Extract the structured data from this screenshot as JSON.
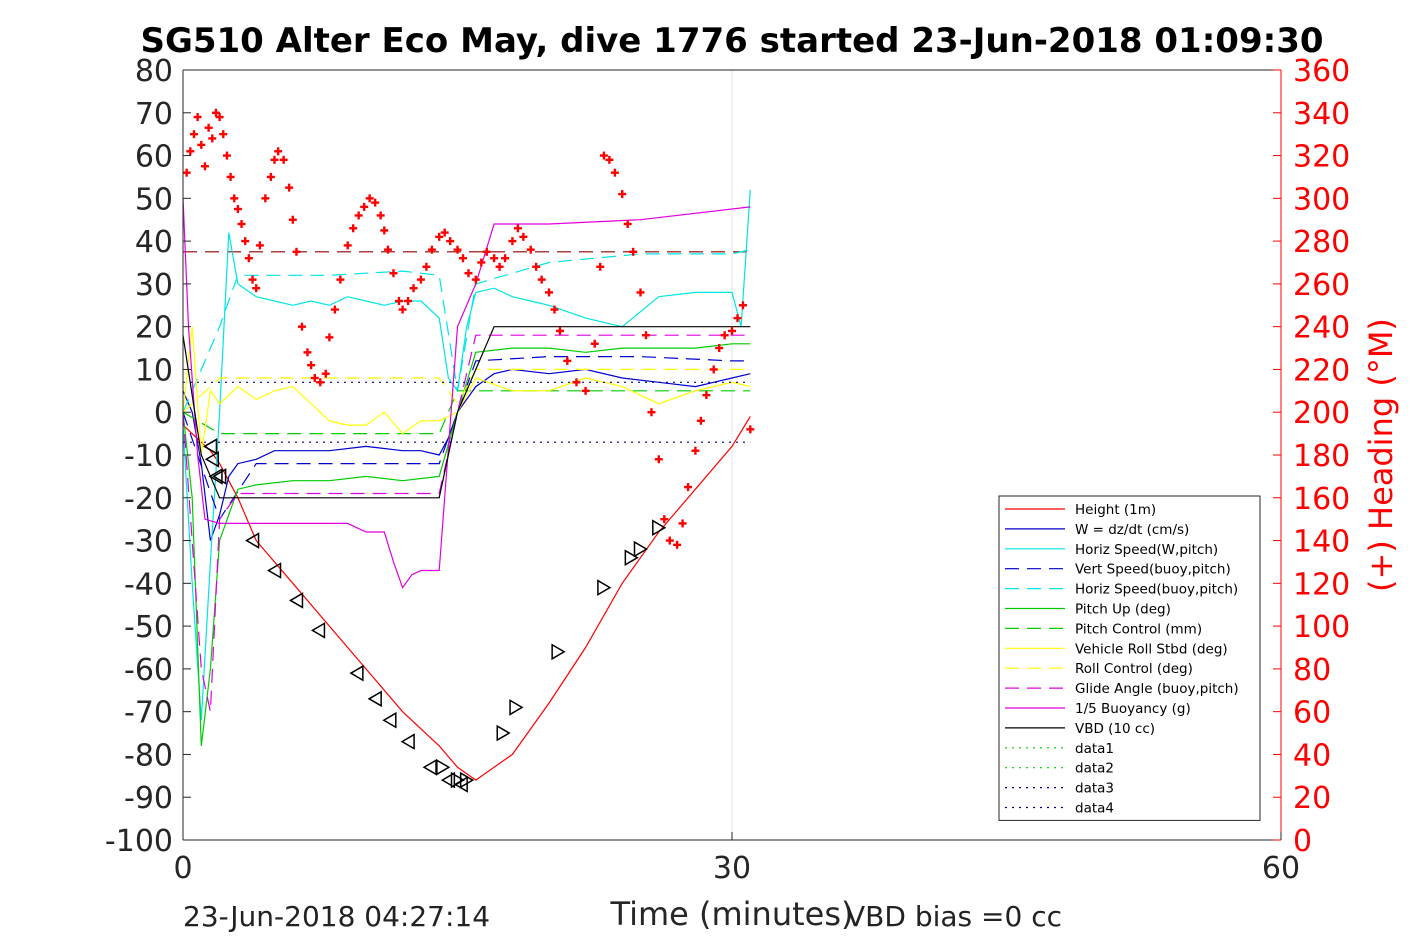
{
  "chart_data": {
    "type": "line",
    "title": "SG510 Alter Eco May, dive 1776 started 23-Jun-2018 01:09:30",
    "xlabel": "Time (minutes)",
    "ylabel_right": "(+) Heading (°M)",
    "xlim": [
      0,
      60
    ],
    "ylim_left": [
      -100,
      80
    ],
    "ylim_right": [
      0,
      360
    ],
    "x_ticks": [
      "0",
      "30",
      "60"
    ],
    "y_ticks_left": [
      "80",
      "70",
      "60",
      "50",
      "40",
      "30",
      "20",
      "10",
      "0",
      "-10",
      "-20",
      "-30",
      "-40",
      "-50",
      "-60",
      "-70",
      "-80",
      "-90",
      "-100"
    ],
    "y_ticks_right": [
      "360",
      "340",
      "320",
      "300",
      "280",
      "260",
      "240",
      "220",
      "200",
      "180",
      "160",
      "140",
      "120",
      "100",
      "80",
      "60",
      "40",
      "20",
      "0"
    ],
    "grid": "x only",
    "legend_position": "bottom-right",
    "footer_left": "23-Jun-2018 04:27:14",
    "footer_right": "VBD bias =0 cc",
    "colors": {
      "axis": "#262626",
      "right_axis": "#ff0000",
      "height": "#ff0000",
      "w": "#0000cc",
      "horiz_speed": "#00e5e5",
      "pitch": "#00cc00",
      "roll": "#ffff00",
      "glide": "#e000e0",
      "vbd": "#000000",
      "heading": "#ff0000"
    },
    "series": [
      {
        "name": "Height (1m)",
        "color": "#ff0000",
        "style": "solid",
        "x": [
          0,
          1,
          1.5,
          2,
          3,
          4,
          6,
          8,
          10,
          12,
          14,
          15,
          16,
          18,
          20,
          22,
          24,
          26,
          28,
          30,
          31
        ],
        "y": [
          -3,
          -7,
          -9,
          -12,
          -20,
          -30,
          -40,
          -50,
          -60,
          -70,
          -78,
          -83,
          -86,
          -80,
          -68,
          -55,
          -40,
          -28,
          -18,
          -8,
          -1
        ]
      },
      {
        "name": "W = dz/dt (cm/s)",
        "color": "#0000cc",
        "style": "solid",
        "x": [
          0,
          0.5,
          1,
          1.5,
          2,
          2.5,
          3,
          4,
          5,
          6,
          8,
          10,
          12,
          13,
          14,
          14.5,
          15,
          16,
          17,
          18,
          20,
          22,
          24,
          26,
          28,
          30,
          31
        ],
        "y": [
          5,
          0,
          -12,
          -30,
          -24,
          -15,
          -12,
          -11,
          -9,
          -9,
          -9,
          -8,
          -9,
          -9,
          -10,
          -6,
          0,
          6,
          9,
          10,
          9,
          10,
          8,
          7,
          6,
          8,
          9
        ]
      },
      {
        "name": "Horiz Speed(W,pitch)",
        "color": "#00e5e5",
        "style": "solid",
        "x": [
          0,
          0.5,
          1,
          1.5,
          2,
          2.5,
          3,
          4,
          5,
          6,
          7,
          8,
          9,
          10,
          11,
          12,
          13,
          14,
          14.5,
          15,
          15.5,
          16,
          17,
          18,
          19,
          20,
          22,
          24,
          26,
          28,
          30,
          30.5,
          31
        ],
        "y": [
          -3,
          -40,
          -72,
          -35,
          0,
          42,
          30,
          27,
          26,
          25,
          26,
          25,
          27,
          26,
          25,
          26,
          26,
          22,
          8,
          5,
          20,
          28,
          29,
          27,
          26,
          25,
          22,
          20,
          27,
          28,
          28,
          20,
          52
        ]
      },
      {
        "name": "Vert Speed(buoy,pitch)",
        "color": "#0000cc",
        "style": "dashed",
        "x": [
          0,
          2,
          4,
          8,
          12,
          14,
          15,
          16,
          20,
          25,
          30,
          31
        ],
        "y": [
          0,
          -25,
          -12,
          -12,
          -12,
          -12,
          0,
          12,
          13,
          13,
          12,
          12
        ]
      },
      {
        "name": "Horiz Speed(buoy,pitch)",
        "color": "#00e5e5",
        "style": "dashed",
        "x": [
          0,
          2,
          3,
          8,
          12,
          14,
          15,
          16,
          20,
          25,
          30,
          31
        ],
        "y": [
          0,
          20,
          32,
          32,
          33,
          32,
          5,
          30,
          35,
          37,
          37,
          38
        ]
      },
      {
        "name": "Pitch Up (deg)",
        "color": "#00cc00",
        "style": "solid",
        "x": [
          0,
          0.5,
          1,
          1.5,
          2,
          3,
          4,
          6,
          8,
          10,
          12,
          14,
          15,
          16,
          18,
          20,
          22,
          24,
          26,
          28,
          30,
          31
        ],
        "y": [
          0,
          -20,
          -78,
          -60,
          -30,
          -18,
          -17,
          -16,
          -16,
          -15,
          -16,
          -15,
          0,
          14,
          15,
          15,
          14,
          15,
          15,
          15,
          16,
          16
        ]
      },
      {
        "name": "Pitch Control (mm)",
        "color": "#00cc00",
        "style": "dashed",
        "x": [
          0,
          2,
          14,
          15,
          16,
          31
        ],
        "y": [
          0,
          -5,
          -5,
          5,
          5,
          5
        ]
      },
      {
        "name": "Vehicle Roll Stbd (deg)",
        "color": "#ffff00",
        "style": "solid",
        "x": [
          0,
          0.5,
          1,
          1.5,
          2,
          3,
          4,
          5,
          6,
          7,
          8,
          9,
          10,
          11,
          12,
          13,
          14,
          15,
          16,
          18,
          20,
          22,
          24,
          26,
          28,
          30,
          31
        ],
        "y": [
          0,
          20,
          -10,
          5,
          2,
          6,
          3,
          5,
          6,
          2,
          -2,
          -3,
          -3,
          0,
          -5,
          -2,
          -2,
          0,
          8,
          5,
          5,
          8,
          6,
          2,
          5,
          7,
          6
        ]
      },
      {
        "name": "Roll Control (deg)",
        "color": "#ffff00",
        "style": "dashed",
        "x": [
          0,
          2,
          14,
          15,
          16,
          31
        ],
        "y": [
          0,
          8,
          8,
          2,
          10,
          10
        ]
      },
      {
        "name": "Glide Angle (buoy,pitch)",
        "color": "#e000e0",
        "style": "dashed",
        "x": [
          0,
          1,
          1.5,
          2,
          3,
          6,
          10,
          14,
          15,
          16,
          20,
          25,
          30,
          31
        ],
        "y": [
          0,
          -60,
          -70,
          -25,
          -19,
          -19,
          -19,
          -19,
          0,
          18,
          18,
          18,
          18,
          18
        ]
      },
      {
        "name": "1/5 Buoyancy (g)",
        "color": "#e000e0",
        "style": "solid",
        "x": [
          0,
          0.3,
          0.8,
          1.2,
          2,
          5,
          9,
          10,
          11,
          11.5,
          12,
          12.5,
          13,
          14,
          15,
          16,
          17,
          20,
          25,
          31
        ],
        "y": [
          50,
          20,
          -10,
          -25,
          -26,
          -26,
          -26,
          -28,
          -28,
          -35,
          -41,
          -38,
          -37,
          -37,
          20,
          30,
          44,
          44,
          45,
          48
        ]
      },
      {
        "name": "VBD (10 cc)",
        "color": "#000000",
        "style": "solid",
        "x": [
          0,
          1,
          2,
          8,
          13.5,
          14,
          15,
          16,
          17,
          20,
          25,
          31
        ],
        "y": [
          18,
          -10,
          -20,
          -20,
          -20,
          -20,
          0,
          10,
          20,
          20,
          20,
          20
        ]
      },
      {
        "name": "data1",
        "color": "#00cc00",
        "style": "dotted",
        "x": [],
        "y": []
      },
      {
        "name": "data2",
        "color": "#00cc00",
        "style": "dotted",
        "x": [],
        "y": []
      },
      {
        "name": "data3",
        "color": "#000080",
        "style": "dotted",
        "x": [
          0,
          31
        ],
        "y": [
          7,
          7
        ]
      },
      {
        "name": "data4",
        "color": "#000080",
        "style": "dotted",
        "x": [
          0,
          31
        ],
        "y": [
          -7,
          -7
        ]
      }
    ],
    "reference_lines": [
      {
        "axis": "right",
        "value": 275,
        "color": "#8b0000",
        "style": "dashed",
        "x": [
          0,
          31
        ]
      }
    ],
    "heading_markers": {
      "axis": "right",
      "color": "#ff0000",
      "x": [
        0.2,
        0.4,
        0.6,
        0.8,
        1.0,
        1.2,
        1.4,
        1.6,
        1.8,
        2.0,
        2.2,
        2.4,
        2.6,
        2.8,
        3.0,
        3.2,
        3.4,
        3.6,
        3.8,
        4.0,
        4.2,
        4.5,
        4.8,
        5.0,
        5.2,
        5.5,
        5.8,
        6.0,
        6.2,
        6.5,
        6.8,
        7.0,
        7.2,
        7.5,
        7.8,
        8.0,
        8.3,
        8.6,
        9.0,
        9.3,
        9.6,
        9.9,
        10.2,
        10.5,
        10.8,
        11.0,
        11.2,
        11.5,
        11.8,
        12.0,
        12.3,
        12.6,
        13.0,
        13.3,
        13.6,
        14.0,
        14.3,
        14.6,
        15.0,
        15.3,
        15.6,
        16.0,
        16.3,
        16.6,
        17.0,
        17.3,
        17.6,
        18.0,
        18.3,
        18.6,
        19.0,
        19.3,
        19.6,
        20.0,
        20.3,
        20.6,
        21.0,
        21.5,
        22.0,
        22.5,
        22.8,
        23.0,
        23.3,
        23.6,
        24.0,
        24.3,
        24.6,
        25.0,
        25.3,
        25.6,
        26.0,
        26.3,
        26.6,
        27.0,
        27.3,
        27.6,
        28.0,
        28.3,
        28.6,
        29.0,
        29.3,
        29.6,
        30.0,
        30.3,
        30.6,
        31.0
      ],
      "y": [
        312,
        322,
        330,
        338,
        325,
        315,
        333,
        328,
        340,
        338,
        330,
        320,
        310,
        300,
        295,
        288,
        280,
        272,
        262,
        258,
        278,
        300,
        310,
        318,
        322,
        318,
        305,
        290,
        275,
        240,
        228,
        222,
        216,
        214,
        218,
        235,
        248,
        262,
        278,
        286,
        292,
        296,
        300,
        298,
        292,
        285,
        276,
        265,
        252,
        248,
        252,
        258,
        262,
        268,
        276,
        282,
        284,
        280,
        276,
        272,
        265,
        262,
        270,
        275,
        272,
        268,
        272,
        280,
        286,
        282,
        276,
        268,
        262,
        256,
        248,
        238,
        224,
        214,
        210,
        232,
        268,
        320,
        318,
        312,
        302,
        288,
        275,
        256,
        236,
        200,
        178,
        150,
        140,
        138,
        148,
        165,
        182,
        196,
        208,
        220,
        230,
        236,
        238,
        244,
        250,
        192
      ]
    },
    "position_markers": {
      "descending": {
        "x": [
          1.5,
          1.6,
          1.8,
          2.0,
          3.8,
          5.0,
          6.2,
          7.4,
          9.5,
          10.5,
          11.3,
          12.3,
          13.5,
          14.5,
          15.2
        ],
        "y": [
          -8,
          -11,
          -15,
          -15,
          -30,
          -37,
          -44,
          -51,
          -61,
          -67,
          -72,
          -77,
          -83,
          -86,
          -87
        ]
      },
      "ascending": {
        "x": [
          14.2,
          15.0,
          15.5,
          17.5,
          18.2,
          20.5,
          23.0,
          24.5,
          25.0,
          26.0
        ],
        "y": [
          -83,
          -86,
          -86,
          -75,
          -69,
          -56,
          -41,
          -34,
          -32,
          -27
        ]
      }
    }
  }
}
